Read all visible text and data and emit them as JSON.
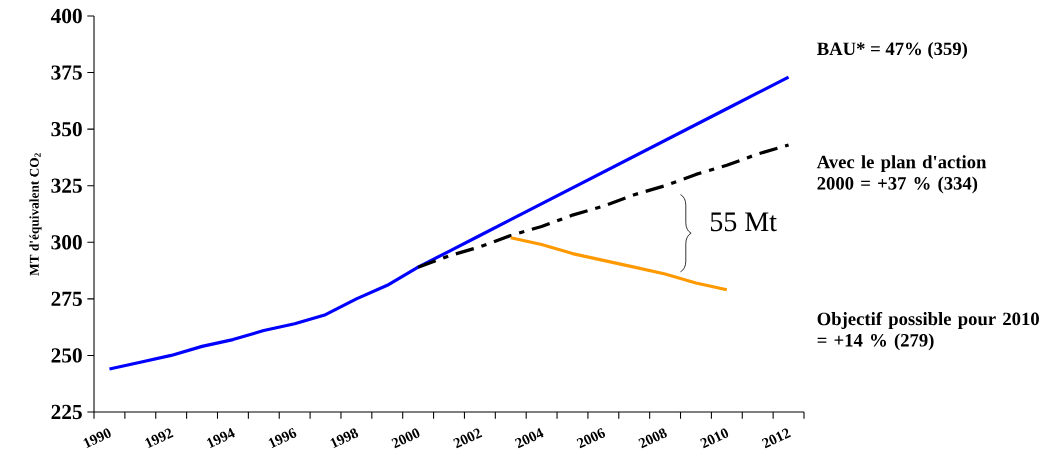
{
  "chart_data": {
    "type": "line",
    "ylabel": "MT d'équivalent CO$_{2}$",
    "categories": [
      "1990",
      null,
      "1992",
      null,
      "1994",
      null,
      "1996",
      null,
      "1998",
      null,
      "2000",
      null,
      "2002",
      null,
      "2004",
      null,
      "2006",
      null,
      "2008",
      null,
      "2010",
      null,
      "2012"
    ],
    "series": [
      {
        "name": "BAU* = 47% (359)",
        "color": "#0000ff",
        "line_style": "solid",
        "values": [
          244,
          247,
          250,
          254,
          257,
          261,
          264,
          268,
          275,
          281,
          289,
          296,
          303,
          310,
          317,
          324,
          331,
          338,
          345,
          352,
          359,
          366,
          373
        ]
      },
      {
        "name": "Avec le plan d'action 2000 = +37 % (334)",
        "color": "#000000",
        "line_style": "dashdot",
        "values": [
          null,
          null,
          null,
          null,
          null,
          null,
          null,
          null,
          null,
          null,
          289,
          294,
          298,
          303,
          307,
          312,
          316,
          321,
          325,
          330,
          334,
          339,
          343
        ]
      },
      {
        "name": "Objectif possible pour 2010 = +14 % (279)",
        "color": "#ff9900",
        "line_style": "solid",
        "values": [
          null,
          null,
          null,
          null,
          null,
          null,
          null,
          null,
          null,
          null,
          null,
          null,
          null,
          302,
          299,
          295,
          292,
          289,
          286,
          282,
          279,
          null,
          null
        ]
      }
    ],
    "annotations": [
      "55 Mt"
    ],
    "ylim": [
      225,
      400
    ],
    "yticks": [
      225,
      250,
      275,
      300,
      325,
      350,
      375,
      400
    ]
  }
}
